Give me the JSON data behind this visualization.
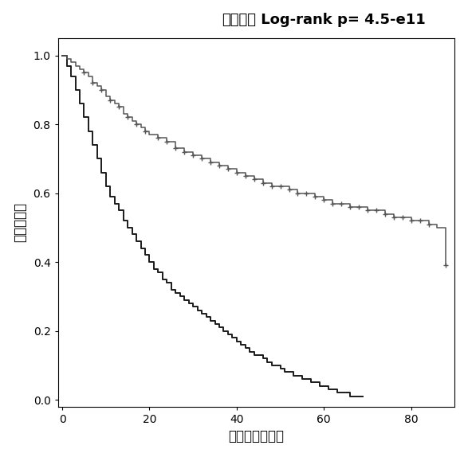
{
  "title_chinese": "生存曲线",
  "title_logrank": " Log-rank p= 4.5-e11",
  "xlabel": "生存时间（月）",
  "ylabel": "累计生存率",
  "xlim": [
    -1,
    90
  ],
  "ylim": [
    -0.02,
    1.05
  ],
  "xticks": [
    0,
    20,
    40,
    60,
    80
  ],
  "yticks": [
    0.0,
    0.2,
    0.4,
    0.6,
    0.8,
    1.0
  ],
  "bg_color": "#ffffff",
  "line1_color": "#1a1a1a",
  "line2_color": "#555555",
  "group1_times": [
    0,
    1,
    2,
    3,
    4,
    5,
    6,
    7,
    8,
    9,
    10,
    11,
    12,
    13,
    14,
    15,
    16,
    17,
    18,
    19,
    20,
    21,
    22,
    23,
    24,
    25,
    26,
    27,
    28,
    29,
    30,
    31,
    32,
    33,
    34,
    35,
    36,
    37,
    38,
    39,
    40,
    41,
    42,
    43,
    44,
    45,
    46,
    47,
    48,
    49,
    50,
    51,
    52,
    53,
    54,
    55,
    56,
    57,
    58,
    59,
    60,
    61,
    62,
    63,
    64,
    65,
    66,
    67,
    68,
    69
  ],
  "group1_surv": [
    1.0,
    0.97,
    0.94,
    0.9,
    0.86,
    0.82,
    0.78,
    0.74,
    0.7,
    0.66,
    0.62,
    0.59,
    0.57,
    0.55,
    0.52,
    0.5,
    0.48,
    0.46,
    0.44,
    0.42,
    0.4,
    0.38,
    0.37,
    0.35,
    0.34,
    0.32,
    0.31,
    0.3,
    0.29,
    0.28,
    0.27,
    0.26,
    0.25,
    0.24,
    0.23,
    0.22,
    0.21,
    0.2,
    0.19,
    0.18,
    0.17,
    0.16,
    0.15,
    0.14,
    0.13,
    0.13,
    0.12,
    0.11,
    0.1,
    0.1,
    0.09,
    0.08,
    0.08,
    0.07,
    0.07,
    0.06,
    0.06,
    0.05,
    0.05,
    0.04,
    0.04,
    0.03,
    0.03,
    0.02,
    0.02,
    0.02,
    0.01,
    0.01,
    0.01,
    0.01
  ],
  "group2_times": [
    0,
    1,
    2,
    3,
    4,
    5,
    6,
    7,
    8,
    9,
    10,
    11,
    12,
    13,
    14,
    15,
    16,
    17,
    18,
    19,
    20,
    22,
    24,
    26,
    28,
    30,
    32,
    34,
    36,
    38,
    40,
    42,
    44,
    46,
    48,
    50,
    52,
    54,
    56,
    58,
    60,
    62,
    64,
    66,
    68,
    70,
    72,
    74,
    76,
    78,
    80,
    82,
    84,
    85,
    86,
    87,
    88
  ],
  "group2_surv": [
    1.0,
    0.99,
    0.98,
    0.97,
    0.96,
    0.95,
    0.94,
    0.92,
    0.91,
    0.9,
    0.88,
    0.87,
    0.86,
    0.85,
    0.83,
    0.82,
    0.81,
    0.8,
    0.79,
    0.78,
    0.77,
    0.76,
    0.75,
    0.73,
    0.72,
    0.71,
    0.7,
    0.69,
    0.68,
    0.67,
    0.66,
    0.65,
    0.64,
    0.63,
    0.62,
    0.62,
    0.61,
    0.6,
    0.6,
    0.59,
    0.58,
    0.57,
    0.57,
    0.56,
    0.56,
    0.55,
    0.55,
    0.54,
    0.53,
    0.53,
    0.52,
    0.52,
    0.51,
    0.51,
    0.5,
    0.5,
    0.39
  ],
  "group2_censor_times": [
    5,
    7,
    9,
    11,
    13,
    15,
    17,
    19,
    22,
    24,
    26,
    28,
    30,
    32,
    34,
    36,
    38,
    40,
    42,
    44,
    46,
    48,
    50,
    52,
    54,
    56,
    58,
    60,
    62,
    64,
    66,
    68,
    70,
    72,
    74,
    76,
    78,
    80,
    82,
    84,
    88
  ],
  "group2_censor_surv": [
    0.95,
    0.92,
    0.9,
    0.87,
    0.85,
    0.82,
    0.8,
    0.78,
    0.76,
    0.75,
    0.73,
    0.72,
    0.71,
    0.7,
    0.69,
    0.68,
    0.67,
    0.66,
    0.65,
    0.64,
    0.63,
    0.62,
    0.62,
    0.61,
    0.6,
    0.6,
    0.59,
    0.58,
    0.57,
    0.57,
    0.56,
    0.56,
    0.55,
    0.55,
    0.54,
    0.53,
    0.53,
    0.52,
    0.52,
    0.51,
    0.39
  ]
}
